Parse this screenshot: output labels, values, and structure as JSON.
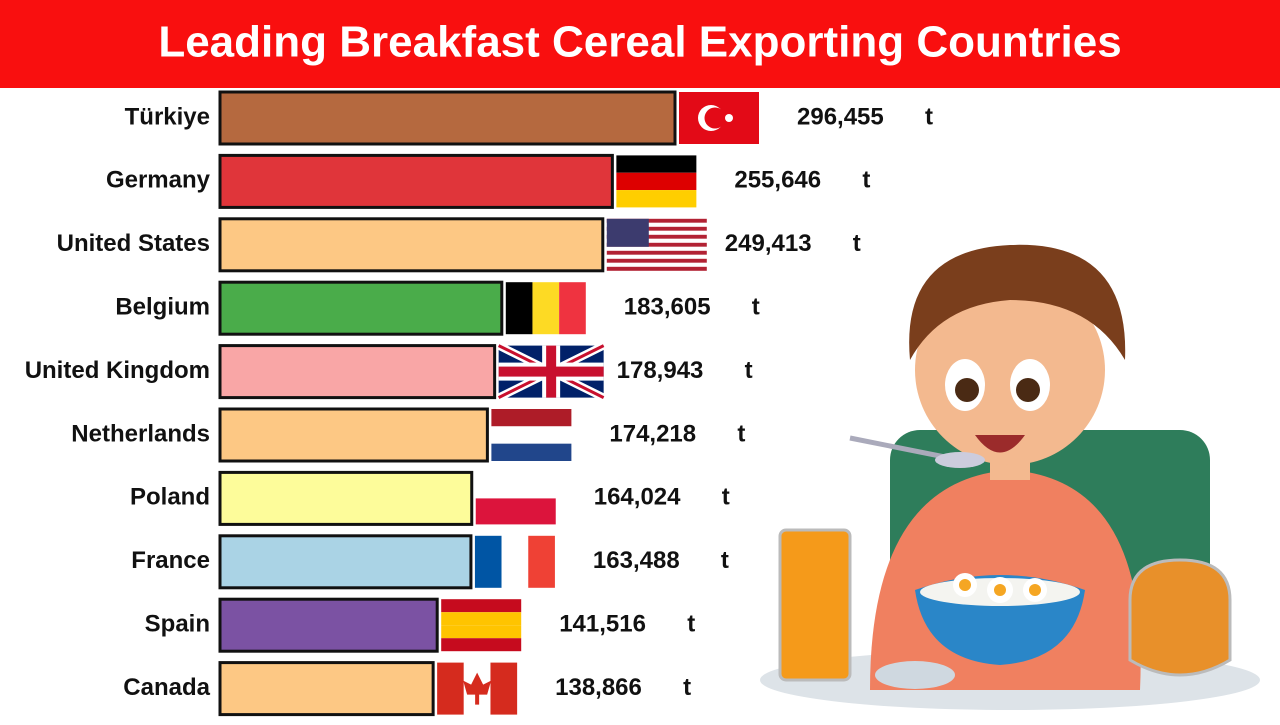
{
  "chart_data": {
    "type": "bar",
    "orientation": "horizontal",
    "title": "Leading Breakfast Cereal Exporting Countries",
    "categories": [
      "Türkiye",
      "Germany",
      "United States",
      "Belgium",
      "United Kingdom",
      "Netherlands",
      "Poland",
      "France",
      "Spain",
      "Canada"
    ],
    "values": [
      296455,
      255646,
      249413,
      183605,
      178943,
      174218,
      164024,
      163488,
      141516,
      138866
    ],
    "value_labels": [
      "296,455",
      "255,646",
      "249,413",
      "183,605",
      "178,943",
      "174,218",
      "164,024",
      "163,488",
      "141,516",
      "138,866"
    ],
    "unit": "t",
    "colors": [
      "#b5693f",
      "#e0353a",
      "#fdc884",
      "#4aac4a",
      "#f9a6a6",
      "#fdc884",
      "#fdfc9a",
      "#aad3e5",
      "#7b52a3",
      "#fdc884"
    ]
  }
}
